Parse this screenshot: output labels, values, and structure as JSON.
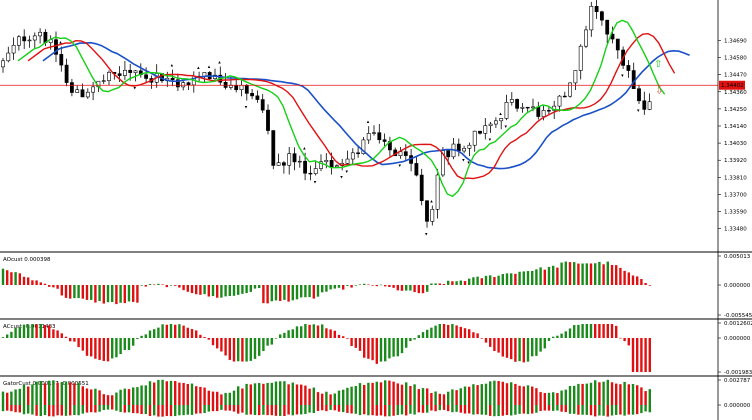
{
  "price_panel": {
    "y_min": 1.3333,
    "y_max": 1.3495,
    "ticks": [
      "1.34690",
      "1.34580",
      "1.34470",
      "1.34360",
      "1.34250",
      "1.34140",
      "1.34030",
      "1.33920",
      "1.33810",
      "1.33700",
      "1.33590",
      "1.33480"
    ],
    "tick_values": [
      1.3469,
      1.3458,
      1.3447,
      1.3436,
      1.3425,
      1.3414,
      1.3403,
      1.3392,
      1.3381,
      1.337,
      1.3359,
      1.3348
    ],
    "current_price": "1.34402",
    "current_price_value": 1.34402,
    "colors": {
      "bull": "#000000",
      "bear": "#000000",
      "bull_body": "#ffffff",
      "bear_body": "#000000",
      "fast_ma": "#16d016",
      "mid_ma": "#e01010",
      "slow_ma": "#1a50c8",
      "price_line": "#e01010",
      "price_label_bg": "#e01010",
      "price_label_text": "#ffffff"
    }
  },
  "subpanels": [
    {
      "title": "AOcust 0.000398",
      "ticks": [
        "0.005013",
        "0.000000",
        "-0.005545"
      ]
    },
    {
      "title": "ACcust -0.0011483",
      "ticks": [
        "0.0012602",
        "0.000000",
        "-0.0019830"
      ]
    },
    {
      "title": "GatorCust 0.000157 -0.000551",
      "ticks": [
        "0.002787",
        "0.000000"
      ]
    }
  ],
  "signals": {
    "up_arrow_color": "#16d016",
    "down_arrow_color": "#e05050"
  },
  "colors": {
    "hist_up": "#1a8a1a",
    "hist_down": "#e01010",
    "separator": "#000000",
    "axis_text": "#000000",
    "background": "#ffffff"
  }
}
